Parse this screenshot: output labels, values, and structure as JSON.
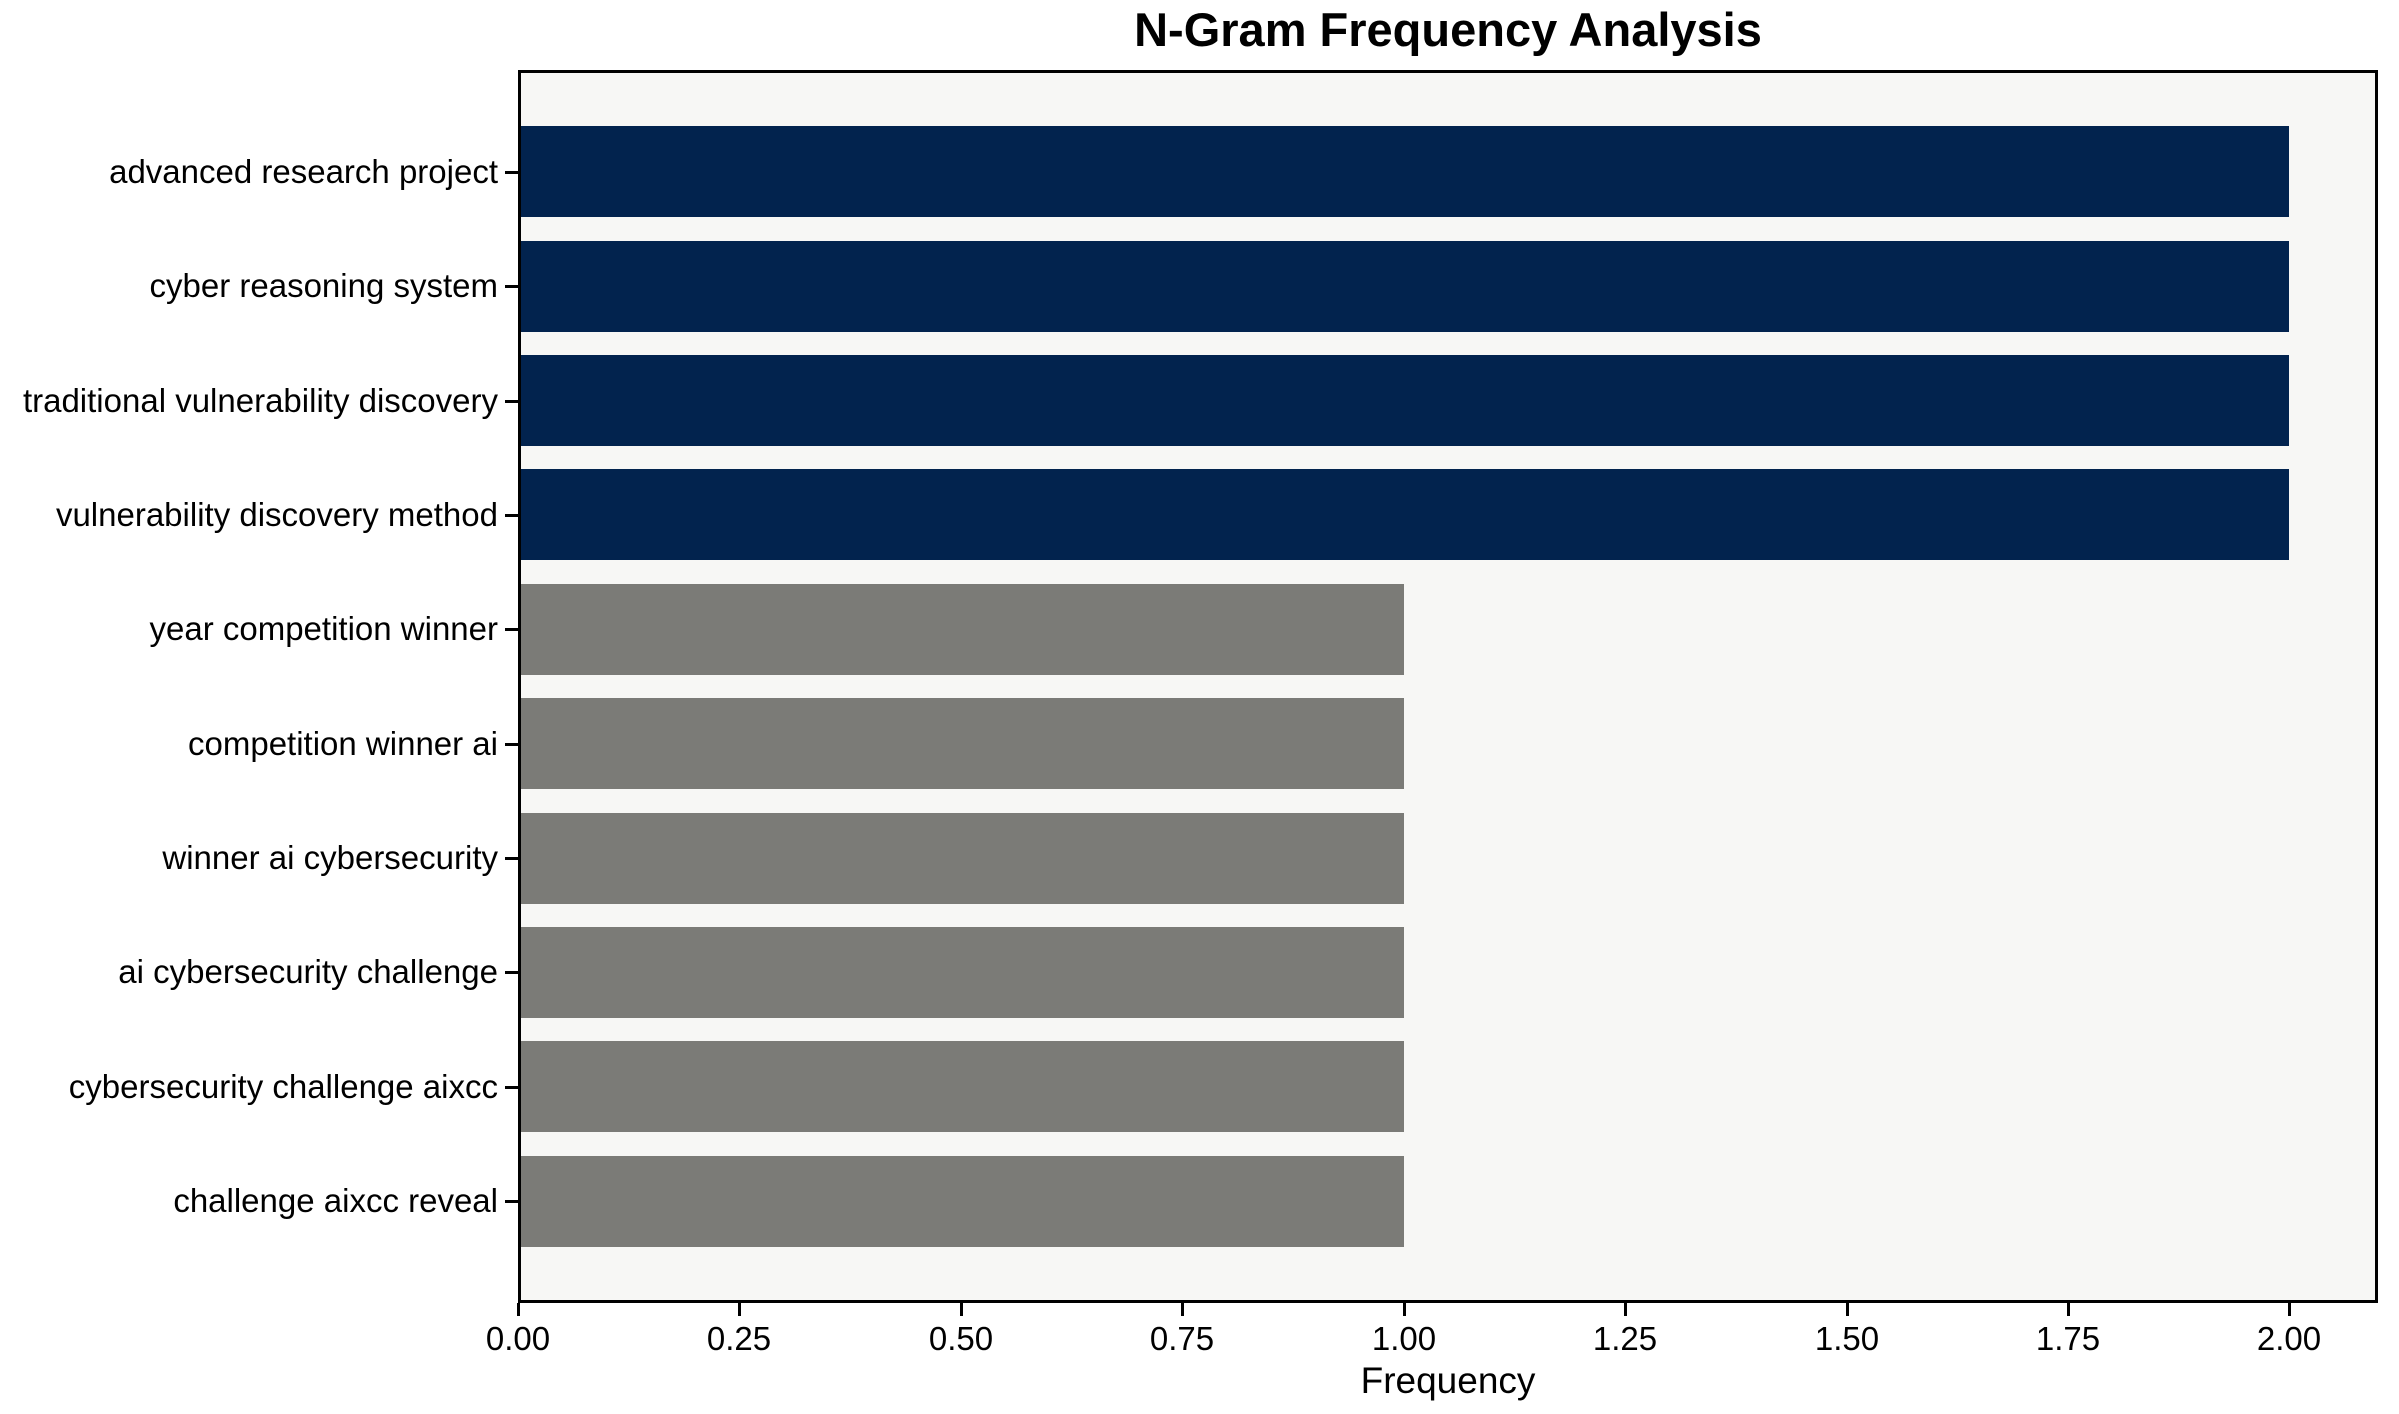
{
  "chart_data": {
    "type": "bar",
    "orientation": "horizontal",
    "title": "N-Gram Frequency Analysis",
    "xlabel": "Frequency",
    "ylabel": "",
    "categories": [
      "advanced research project",
      "cyber reasoning system",
      "traditional vulnerability discovery",
      "vulnerability discovery method",
      "year competition winner",
      "competition winner ai",
      "winner ai cybersecurity",
      "ai cybersecurity challenge",
      "cybersecurity challenge aixcc",
      "challenge aixcc reveal"
    ],
    "values": [
      2,
      2,
      2,
      2,
      1,
      1,
      1,
      1,
      1,
      1
    ],
    "bar_colors": [
      "#02234e",
      "#02234e",
      "#02234e",
      "#02234e",
      "#7b7b77",
      "#7b7b77",
      "#7b7b77",
      "#7b7b77",
      "#7b7b77",
      "#7b7b77"
    ],
    "xlim": [
      0,
      2.1
    ],
    "xticks": [
      0.0,
      0.25,
      0.5,
      0.75,
      1.0,
      1.25,
      1.5,
      1.75,
      2.0
    ],
    "xtick_labels": [
      "0.00",
      "0.25",
      "0.50",
      "0.75",
      "1.00",
      "1.25",
      "1.50",
      "1.75",
      "2.00"
    ],
    "grid": false,
    "legend": null,
    "bar_height_fraction": 0.8,
    "colors": {
      "highlight_bar": "#02234e",
      "regular_bar": "#7b7b77",
      "plot_background": "#f7f7f5",
      "figure_background": "#ffffff",
      "axis": "#000000",
      "text": "#000000"
    }
  }
}
